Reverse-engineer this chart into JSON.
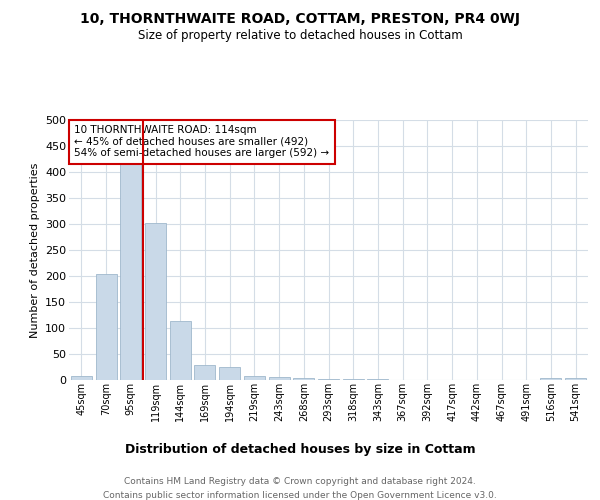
{
  "title": "10, THORNTHWAITE ROAD, COTTAM, PRESTON, PR4 0WJ",
  "subtitle": "Size of property relative to detached houses in Cottam",
  "xlabel": "Distribution of detached houses by size in Cottam",
  "ylabel": "Number of detached properties",
  "categories": [
    "45sqm",
    "70sqm",
    "95sqm",
    "119sqm",
    "144sqm",
    "169sqm",
    "194sqm",
    "219sqm",
    "243sqm",
    "268sqm",
    "293sqm",
    "318sqm",
    "343sqm",
    "367sqm",
    "392sqm",
    "417sqm",
    "442sqm",
    "467sqm",
    "491sqm",
    "516sqm",
    "541sqm"
  ],
  "values": [
    8,
    203,
    415,
    302,
    113,
    29,
    25,
    7,
    5,
    4,
    2,
    2,
    2,
    0,
    0,
    0,
    0,
    0,
    0,
    4,
    3
  ],
  "bar_color": "#c9d9e8",
  "bar_edge_color": "#a0b8cc",
  "ref_line_x": 3,
  "ref_line_color": "#cc0000",
  "annotation_text": "10 THORNTHWAITE ROAD: 114sqm\n← 45% of detached houses are smaller (492)\n54% of semi-detached houses are larger (592) →",
  "annotation_box_color": "#ffffff",
  "annotation_box_edge_color": "#cc0000",
  "ylim": [
    0,
    500
  ],
  "yticks": [
    0,
    50,
    100,
    150,
    200,
    250,
    300,
    350,
    400,
    450,
    500
  ],
  "footer": "Contains HM Land Registry data © Crown copyright and database right 2024.\nContains public sector information licensed under the Open Government Licence v3.0.",
  "background_color": "#ffffff",
  "grid_color": "#d4dde6"
}
